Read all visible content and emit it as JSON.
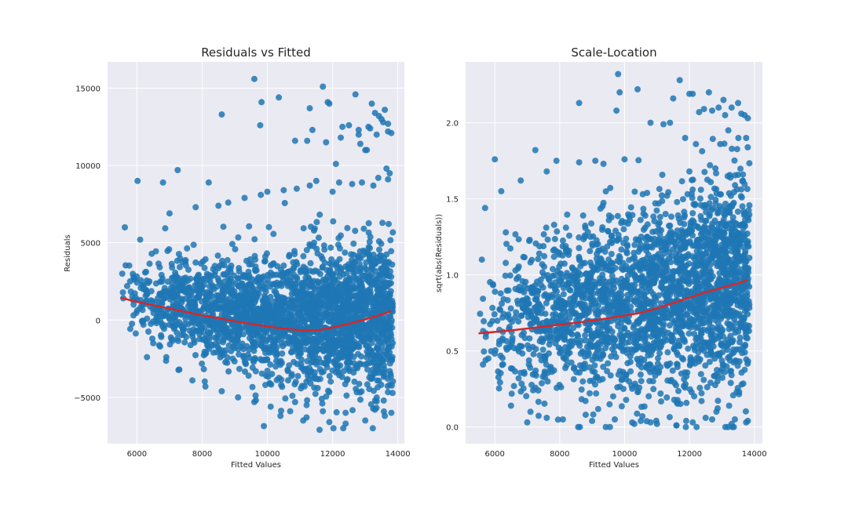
{
  "colors": {
    "axes_background": "#eaeaf2",
    "grid": "#ffffff",
    "points": "#1f77b4",
    "lowess": "#d62728",
    "text": "#262626"
  },
  "chart_data": [
    {
      "type": "scatter",
      "title": "Residuals vs Fitted",
      "xlabel": "Fitted Values",
      "ylabel": "Residuals",
      "xlim": [
        5100,
        14200
      ],
      "ylim": [
        -8000,
        16700
      ],
      "xticks": [
        6000,
        8000,
        10000,
        12000,
        14000
      ],
      "yticks": [
        -5000,
        0,
        5000,
        10000,
        15000
      ],
      "xtick_labels": [
        "6000",
        "8000",
        "10000",
        "12000",
        "14000"
      ],
      "ytick_labels": [
        "−5000",
        "0",
        "5000",
        "10000",
        "15000"
      ],
      "grid": true,
      "point_color": "#1f77b4",
      "lowess_color": "#d62728",
      "lowess": {
        "x": [
          5500,
          6000,
          6500,
          7000,
          7500,
          8000,
          8500,
          9000,
          9500,
          10000,
          10500,
          11000,
          11300,
          11600,
          12000,
          12500,
          13000,
          13500,
          13800
        ],
        "y": [
          1450,
          1180,
          960,
          740,
          520,
          300,
          120,
          -80,
          -250,
          -420,
          -550,
          -660,
          -680,
          -640,
          -480,
          -240,
          40,
          360,
          580
        ]
      },
      "points": {
        "x": [
          6020,
          7250,
          8600,
          9600,
          9780,
          9820,
          10350,
          10850,
          11220,
          11300,
          11380,
          11700,
          11850,
          11900,
          12100,
          12500,
          12700,
          12800,
          13050,
          13200,
          13420,
          13550,
          13700,
          13800,
          5630,
          6800,
          8200,
          12300,
          12850,
          13300,
          13000,
          13150,
          13350,
          12250,
          11800,
          13600,
          13700,
          13500,
          13100,
          12800,
          9600,
          10400,
          11100,
          11600,
          5550,
          5700,
          5900,
          6200,
          6500,
          6900,
          7300,
          7700,
          8100,
          8600,
          9100,
          10100,
          10700,
          11200,
          11900,
          12400,
          13000,
          13600,
          13800,
          8500,
          10000,
          11500,
          12600,
          13400,
          13750,
          10900,
          12200,
          13250,
          13650,
          6100,
          7000,
          7800,
          8800,
          9300,
          9800,
          10500,
          11300,
          12000,
          12900,
          13700,
          11700,
          12400,
          13300
        ],
        "y": [
          9000,
          9700,
          13300,
          15600,
          12600,
          14100,
          14400,
          11600,
          11600,
          13700,
          12300,
          15100,
          14100,
          14000,
          10100,
          12600,
          14600,
          12000,
          11000,
          14000,
          13200,
          12800,
          12200,
          12100,
          6000,
          8900,
          8900,
          12500,
          11400,
          13400,
          11000,
          12400,
          12000,
          11800,
          11500,
          13600,
          12700,
          13000,
          12500,
          12300,
          -5300,
          -6200,
          -6500,
          -7100,
          3000,
          2200,
          1000,
          -300,
          -1500,
          -2400,
          -3200,
          -3900,
          -4300,
          -4600,
          -5000,
          -5600,
          -5900,
          -6300,
          -6600,
          -6700,
          -6500,
          -6200,
          -6000,
          7400,
          8300,
          9000,
          8800,
          9200,
          9500,
          8500,
          8900,
          8700,
          9800,
          5200,
          6900,
          7300,
          7600,
          7900,
          8100,
          8400,
          8700,
          8300,
          8900,
          9100,
          -5900,
          -6000,
          -5800
        ]
      }
    },
    {
      "type": "scatter",
      "title": "Scale-Location",
      "xlabel": "Fitted Values",
      "ylabel": "sqrt(abs(Residuals))",
      "xlim": [
        5100,
        14250
      ],
      "ylim": [
        -0.11,
        2.4
      ],
      "xticks": [
        6000,
        8000,
        10000,
        12000,
        14000
      ],
      "yticks": [
        0.0,
        0.5,
        1.0,
        1.5,
        2.0
      ],
      "xtick_labels": [
        "6000",
        "8000",
        "10000",
        "12000",
        "14000"
      ],
      "ytick_labels": [
        "0.0",
        "0.5",
        "1.0",
        "1.5",
        "2.0"
      ],
      "grid": true,
      "point_color": "#1f77b4",
      "lowess_color": "#d62728",
      "lowess": {
        "x": [
          5500,
          6500,
          7500,
          8500,
          9500,
          10500,
          11000,
          11500,
          12000,
          12500,
          13000,
          13500,
          13800
        ],
        "y": [
          0.615,
          0.635,
          0.66,
          0.685,
          0.715,
          0.75,
          0.78,
          0.815,
          0.85,
          0.885,
          0.915,
          0.945,
          0.965
        ]
      },
      "points": {
        "x": [
          9800,
          9850,
          10400,
          11700,
          12000,
          12600,
          12700,
          8600,
          9750,
          10800,
          11500,
          12100,
          12300,
          12900,
          13100,
          13300,
          13600,
          13800,
          6000,
          7250,
          7900,
          8600,
          9100,
          9350,
          5700,
          11400,
          12200,
          12450,
          12950,
          13200,
          13050,
          13700,
          13500,
          11200,
          10000,
          6200,
          6800,
          7600,
          5600,
          5800,
          8100,
          9000,
          10300,
          10800,
          11600,
          12100,
          12700,
          13300,
          13750,
          7000,
          7600,
          8800,
          9700,
          10500,
          11000,
          11900,
          12500,
          13400,
          13800,
          6500,
          7100,
          12000,
          12800,
          13650
        ],
        "y": [
          2.32,
          2.2,
          2.22,
          2.28,
          2.19,
          2.2,
          2.08,
          2.13,
          2.08,
          2.0,
          2.16,
          2.19,
          2.07,
          2.1,
          2.05,
          2.1,
          2.06,
          2.03,
          1.76,
          1.82,
          1.75,
          1.74,
          1.75,
          1.73,
          1.44,
          2.0,
          1.86,
          2.09,
          1.86,
          1.95,
          2.15,
          2.05,
          2.13,
          1.99,
          1.76,
          1.55,
          1.62,
          1.68,
          1.1,
          0.45,
          0.05,
          0.04,
          0.02,
          0.03,
          0.01,
          0.03,
          0.05,
          0.02,
          0.03,
          0.03,
          0.06,
          0.08,
          0.05,
          0.04,
          0.02,
          0.04,
          0.06,
          0.05,
          0.04,
          0.14,
          0.1,
          1.68,
          1.7,
          1.66
        ]
      }
    }
  ]
}
